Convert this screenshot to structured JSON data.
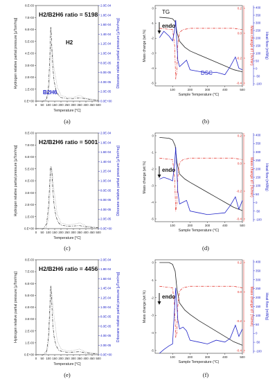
{
  "labels": {
    "temperature": "Temperature [°C]",
    "h2_axis": "Hydrogen relative partial pressure [μTorr/mg]",
    "b2h6_axis": "Diborane relative partial pressure [μTorr/mg]",
    "sample_temperature": "Sample Temperature (°C)",
    "mass_change": "Mass change (wt.%)",
    "mass_change_dt": "Mass change dT (%/min)",
    "heat_flow": "Heat flow (mW/g)"
  },
  "colors": {
    "black": "#222222",
    "blue": "#1f23c8",
    "red": "#e0261f",
    "gray": "#9a9a9a"
  },
  "chart_data": [
    {
      "type": "line",
      "panel": "a",
      "caption": "(a)",
      "title": "H2/B2H6 ratio = 5198",
      "xlim": [
        0,
        500
      ],
      "ylim": [
        0,
        0.008
      ],
      "y2lim": [
        0,
        0.0002
      ],
      "xticks": [
        "0",
        "50",
        "100",
        "150",
        "200",
        "250",
        "300",
        "350",
        "400",
        "450",
        "500"
      ],
      "yticks": [
        "0.E+00",
        "1.E-03",
        "2.E-03",
        "3.E-03",
        "4.E-03",
        "5.E-03",
        "6.E-03",
        "7.E-03",
        "8.E-03"
      ],
      "y2ticks": [
        "0.0E+00",
        "2.0E-05",
        "4.0E-05",
        "6.0E-05",
        "8.0E-05",
        "1.0E-04",
        "1.2E-04",
        "1.4E-04",
        "1.6E-04",
        "1.8E-04",
        "2.0E-04"
      ],
      "annotations": [
        "H2",
        "B2H6"
      ],
      "series": [
        {
          "name": "H2",
          "axis": "left",
          "style": "dashdot",
          "x": [
            0,
            60,
            85,
            100,
            110,
            115,
            118,
            122,
            128,
            135,
            145,
            160,
            180,
            200,
            230,
            260,
            300,
            350,
            400,
            450,
            500
          ],
          "y": [
            0,
            0,
            0.0002,
            0.0012,
            0.0035,
            0.0052,
            0.0062,
            0.0058,
            0.0042,
            0.0028,
            0.0017,
            0.0009,
            0.0005,
            0.0003,
            0.00025,
            0.0002,
            0.00022,
            0.00028,
            0.0002,
            0.00012,
            8e-05
          ]
        },
        {
          "name": "B2H6",
          "axis": "right",
          "style": "dot",
          "x": [
            0,
            80,
            100,
            115,
            122,
            130,
            145,
            170,
            200,
            250,
            300,
            350,
            400,
            500
          ],
          "y": [
            0,
            0,
            1.5e-05,
            6e-05,
            0.00012,
            0.00011,
            7e-05,
            3e-05,
            1.2e-05,
            8e-06,
            8e-06,
            1.2e-05,
            6e-06,
            2e-06
          ]
        }
      ]
    },
    {
      "type": "line",
      "panel": "b",
      "caption": "(b)",
      "xlim": [
        0,
        500
      ],
      "ylim": [
        -5,
        0
      ],
      "y2lim": [
        -0.4,
        0.2
      ],
      "y3lim": [
        -100,
        400
      ],
      "xticks": [
        "100",
        "200",
        "300",
        "400",
        "500"
      ],
      "yticks": [
        "0",
        "-1",
        "-2",
        "-3",
        "-4",
        "-5"
      ],
      "y2ticks": [
        "0.2",
        "0.0",
        "-0.2",
        "-0.4"
      ],
      "y3ticks": [
        "400",
        "350",
        "300",
        "250",
        "200",
        "150",
        "100",
        "50",
        "0",
        "-50",
        "-100"
      ],
      "annotations": [
        "TG",
        "endo",
        "DSC"
      ],
      "series": [
        {
          "name": "TG",
          "axis": "left",
          "x": [
            25,
            80,
            100,
            115,
            125,
            140,
            170,
            200,
            250,
            300,
            350,
            400,
            450,
            500
          ],
          "y": [
            -0.6,
            -0.65,
            -0.7,
            -0.9,
            -1.6,
            -2.2,
            -2.6,
            -2.85,
            -3.1,
            -3.35,
            -3.6,
            -3.85,
            -4.1,
            -4.25
          ]
        },
        {
          "name": "DTG",
          "axis": "right",
          "style": "dashdot",
          "x": [
            25,
            100,
            112,
            118,
            124,
            130,
            140,
            160,
            200,
            300,
            400,
            450,
            500
          ],
          "y": [
            0.03,
            0.02,
            -0.1,
            -0.35,
            -0.3,
            -0.1,
            0.0,
            0.02,
            0.03,
            0.03,
            0.03,
            0.03,
            0.02
          ]
        },
        {
          "name": "DSC",
          "axis": "heat",
          "x": [
            25,
            50,
            80,
            100,
            112,
            118,
            124,
            130,
            140,
            160,
            180,
            200,
            250,
            300,
            350,
            400,
            430,
            460,
            480,
            500
          ],
          "y": [
            200,
            240,
            210,
            180,
            250,
            310,
            180,
            60,
            20,
            40,
            60,
            0,
            -10,
            -20,
            -15,
            -30,
            20,
            80,
            10,
            0
          ]
        }
      ]
    },
    {
      "type": "line",
      "panel": "c",
      "caption": "(c)",
      "title": "H2/B2H6 ratio = 5001",
      "xlim": [
        0,
        500
      ],
      "ylim": [
        0,
        0.008
      ],
      "y2lim": [
        0,
        0.0002
      ],
      "xticks": [
        "0",
        "50",
        "100",
        "150",
        "200",
        "250",
        "300",
        "350",
        "400",
        "450",
        "500"
      ],
      "yticks": [
        "0.E+00",
        "1.E-03",
        "2.E-03",
        "3.E-03",
        "4.E-03",
        "5.E-03",
        "6.E-03",
        "7.E-03",
        "8.E-03"
      ],
      "y2ticks": [
        "0.0E+00",
        "2.0E-05",
        "4.0E-05",
        "6.0E-05",
        "8.0E-05",
        "1.0E-04",
        "1.2E-04",
        "1.4E-04",
        "1.6E-04",
        "1.8E-04",
        "2.0E-04"
      ],
      "series": [
        {
          "name": "H2",
          "axis": "left",
          "style": "dashdot",
          "x": [
            0,
            60,
            85,
            100,
            110,
            115,
            120,
            128,
            135,
            145,
            160,
            180,
            200,
            250,
            300,
            350,
            400,
            450,
            500
          ],
          "y": [
            0,
            0,
            0.0004,
            0.0018,
            0.0038,
            0.005,
            0.0052,
            0.0046,
            0.0032,
            0.002,
            0.001,
            0.0005,
            0.0003,
            0.0002,
            0.00022,
            0.00025,
            0.00015,
            0.0001,
            8e-05
          ]
        },
        {
          "name": "B2H6",
          "axis": "right",
          "style": "dot",
          "x": [
            0,
            80,
            100,
            115,
            122,
            130,
            145,
            170,
            200,
            250,
            300,
            350,
            400,
            500
          ],
          "y": [
            0,
            0,
            2e-05,
            8e-05,
            0.00013,
            0.00012,
            8e-05,
            3e-05,
            1.2e-05,
            8e-06,
            9e-06,
            1.2e-05,
            6e-06,
            2e-06
          ]
        }
      ]
    },
    {
      "type": "line",
      "panel": "d",
      "caption": "(d)",
      "xlim": [
        0,
        500
      ],
      "ylim": [
        -5,
        0
      ],
      "y2lim": [
        -0.4,
        0.2
      ],
      "y3lim": [
        -100,
        400
      ],
      "xticks": [
        "100",
        "200",
        "300",
        "400",
        "500"
      ],
      "yticks": [
        "0",
        "-1",
        "-2",
        "-3",
        "-4",
        "-5"
      ],
      "y2ticks": [
        "0.2",
        "0.0",
        "-0.2",
        "-0.4"
      ],
      "y3ticks": [
        "400",
        "350",
        "300",
        "250",
        "200",
        "150",
        "100",
        "50",
        "0",
        "-50",
        "-100"
      ],
      "annotations": [
        "endo"
      ],
      "series": [
        {
          "name": "TG",
          "axis": "left",
          "x": [
            25,
            80,
            100,
            115,
            125,
            140,
            170,
            200,
            250,
            300,
            350,
            400,
            450,
            500
          ],
          "y": [
            -0.1,
            -0.15,
            -0.25,
            -0.6,
            -1.6,
            -2.3,
            -2.6,
            -2.8,
            -3.1,
            -3.4,
            -3.7,
            -4.0,
            -4.3,
            -4.5
          ]
        },
        {
          "name": "DTG",
          "axis": "right",
          "style": "dashdot",
          "x": [
            25,
            100,
            112,
            118,
            124,
            130,
            140,
            160,
            200,
            300,
            400,
            450,
            500
          ],
          "y": [
            0.03,
            0.02,
            -0.1,
            -0.33,
            -0.28,
            -0.1,
            0.0,
            0.02,
            0.03,
            0.03,
            0.03,
            0.03,
            0.02
          ]
        },
        {
          "name": "DSC",
          "axis": "heat",
          "x": [
            25,
            50,
            80,
            100,
            112,
            118,
            124,
            130,
            140,
            160,
            180,
            200,
            250,
            300,
            350,
            400,
            430,
            460,
            480,
            500
          ],
          "y": [
            140,
            150,
            140,
            130,
            230,
            320,
            200,
            70,
            0,
            10,
            20,
            -40,
            -50,
            -60,
            -55,
            -50,
            -10,
            40,
            -30,
            20
          ]
        }
      ]
    },
    {
      "type": "line",
      "panel": "e",
      "caption": "(e)",
      "title": "H2/B2H6 ratio = 4456",
      "xlim": [
        0,
        500
      ],
      "ylim": [
        0,
        0.008
      ],
      "y2lim": [
        0,
        0.0002
      ],
      "xticks": [
        "0",
        "50",
        "100",
        "150",
        "200",
        "250",
        "300",
        "350",
        "400",
        "450",
        "500"
      ],
      "yticks": [
        "0.E+00",
        "1.E-03",
        "2.E-03",
        "3.E-03",
        "4.E-03",
        "5.E-03",
        "6.E-03",
        "7.E-03",
        "8.E-03"
      ],
      "y2ticks": [
        "0.0E+00",
        "2.0E-05",
        "4.0E-05",
        "6.0E-05",
        "8.0E-05",
        "1.0E-04",
        "1.2E-04",
        "1.4E-04",
        "1.6E-04",
        "1.8E-04",
        "2.0E-04"
      ],
      "series": [
        {
          "name": "H2",
          "axis": "left",
          "style": "dashdot",
          "x": [
            0,
            60,
            85,
            100,
            110,
            115,
            118,
            122,
            128,
            135,
            145,
            160,
            180,
            200,
            250,
            300,
            350,
            400,
            450,
            500
          ],
          "y": [
            0,
            0,
            0.0003,
            0.0015,
            0.0038,
            0.0052,
            0.0058,
            0.0055,
            0.004,
            0.0025,
            0.0015,
            0.0008,
            0.0004,
            0.0003,
            0.0002,
            0.00022,
            0.00025,
            0.00015,
            0.0001,
            8e-05
          ]
        },
        {
          "name": "B2H6",
          "axis": "right",
          "style": "dot",
          "x": [
            0,
            80,
            100,
            115,
            122,
            130,
            145,
            170,
            200,
            250,
            300,
            350,
            400,
            500
          ],
          "y": [
            0,
            0,
            2e-05,
            9e-05,
            0.00014,
            0.00012,
            8e-05,
            3e-05,
            1.2e-05,
            8e-06,
            9e-06,
            1.2e-05,
            6e-06,
            2e-06
          ]
        }
      ]
    },
    {
      "type": "line",
      "panel": "f",
      "caption": "(f)",
      "xlim": [
        0,
        500
      ],
      "ylim": [
        -5,
        0
      ],
      "y2lim": [
        -0.4,
        0.2
      ],
      "y3lim": [
        -100,
        400
      ],
      "xticks": [
        "100",
        "200",
        "300",
        "400",
        "500"
      ],
      "yticks": [
        "0",
        "-1",
        "-2",
        "-3",
        "-4",
        "-5"
      ],
      "y2ticks": [
        "0.2",
        "0.0",
        "-0.2",
        "-0.4"
      ],
      "y3ticks": [
        "400",
        "350",
        "300",
        "250",
        "200",
        "150",
        "100",
        "50",
        "0",
        "-50",
        "-100"
      ],
      "annotations": [
        "endo"
      ],
      "series": [
        {
          "name": "TG",
          "axis": "left",
          "x": [
            25,
            80,
            100,
            115,
            125,
            140,
            170,
            200,
            250,
            300,
            350,
            400,
            450,
            500
          ],
          "y": [
            0,
            0,
            -0.1,
            -0.5,
            -1.5,
            -2.3,
            -2.7,
            -2.95,
            -3.3,
            -3.6,
            -3.9,
            -4.2,
            -4.5,
            -4.7
          ]
        },
        {
          "name": "DTG",
          "axis": "right",
          "style": "dashdot",
          "x": [
            25,
            100,
            112,
            118,
            124,
            130,
            140,
            160,
            200,
            300,
            400,
            450,
            500
          ],
          "y": [
            0.03,
            0.02,
            -0.1,
            -0.3,
            -0.27,
            -0.1,
            0.0,
            0.02,
            0.03,
            0.03,
            0.03,
            0.03,
            0.02
          ]
        },
        {
          "name": "DSC",
          "axis": "heat",
          "x": [
            25,
            50,
            80,
            100,
            112,
            118,
            124,
            130,
            140,
            160,
            180,
            200,
            250,
            300,
            350,
            400,
            430,
            460,
            480,
            500
          ],
          "y": [
            -100,
            -80,
            -60,
            -50,
            150,
            250,
            170,
            80,
            30,
            40,
            20,
            -30,
            -40,
            -50,
            -30,
            -40,
            -20,
            50,
            -10,
            30
          ]
        }
      ]
    }
  ]
}
